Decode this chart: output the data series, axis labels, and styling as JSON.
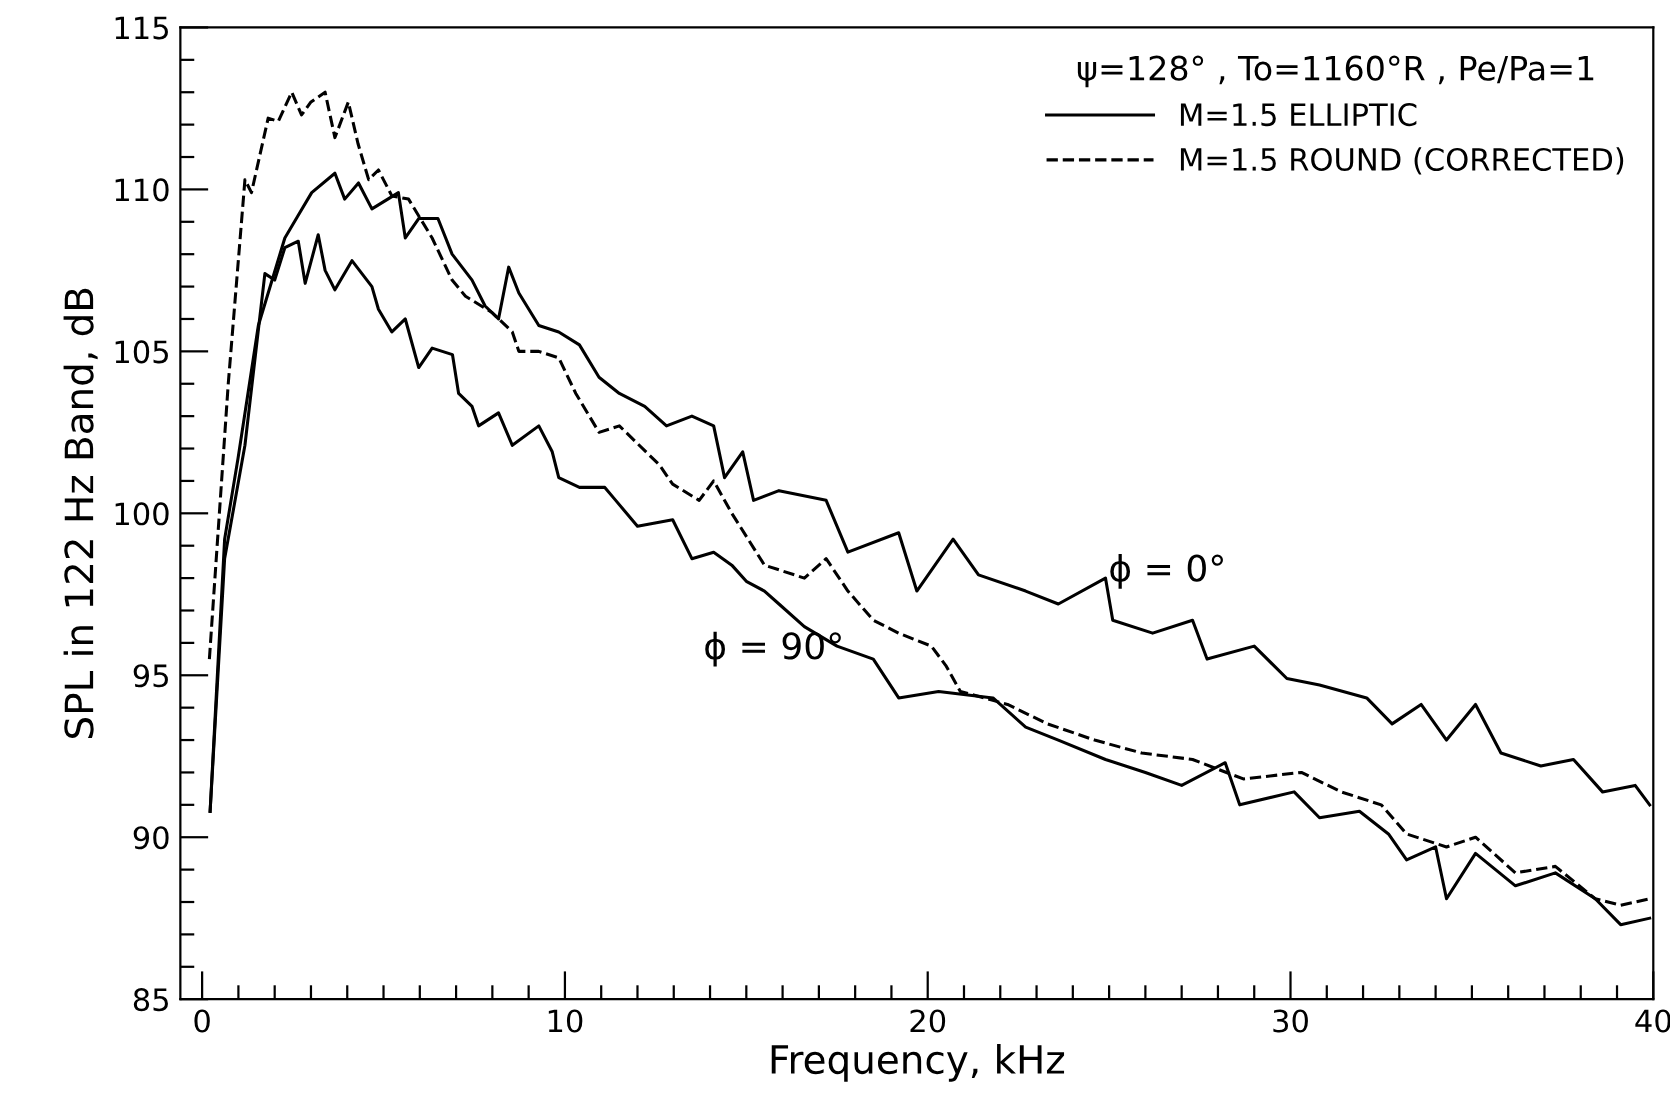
{
  "chart_data": {
    "type": "line",
    "xlabel": "Frequency, kHz",
    "ylabel": "SPL in 122 Hz Band, dB",
    "legend_title": "ψ=128° , To=1160°R , Pe/Pa=1",
    "legend": "top right",
    "grid": false,
    "marker": "none",
    "xlim": [
      -0.6,
      40
    ],
    "ylim": [
      85,
      115
    ],
    "xticks": [
      0,
      {
        "value": 1,
        "label": null
      },
      {
        "value": 2,
        "label": null
      },
      {
        "value": 3,
        "label": null
      },
      {
        "value": 4,
        "label": null
      },
      {
        "value": 5,
        "label": null
      },
      {
        "value": 6,
        "label": null
      },
      {
        "value": 7,
        "label": null
      },
      {
        "value": 8,
        "label": null
      },
      {
        "value": 9,
        "label": null
      },
      10,
      {
        "value": 11,
        "label": null
      },
      {
        "value": 12,
        "label": null
      },
      {
        "value": 13,
        "label": null
      },
      {
        "value": 14,
        "label": null
      },
      {
        "value": 15,
        "label": null
      },
      {
        "value": 16,
        "label": null
      },
      {
        "value": 17,
        "label": null
      },
      {
        "value": 18,
        "label": null
      },
      {
        "value": 19,
        "label": null
      },
      20,
      {
        "value": 21,
        "label": null
      },
      {
        "value": 22,
        "label": null
      },
      {
        "value": 23,
        "label": null
      },
      {
        "value": 24,
        "label": null
      },
      {
        "value": 25,
        "label": null
      },
      {
        "value": 26,
        "label": null
      },
      {
        "value": 27,
        "label": null
      },
      {
        "value": 28,
        "label": null
      },
      {
        "value": 29,
        "label": null
      },
      30,
      {
        "value": 31,
        "label": null
      },
      {
        "value": 32,
        "label": null
      },
      {
        "value": 33,
        "label": null
      },
      {
        "value": 34,
        "label": null
      },
      {
        "value": 35,
        "label": null
      },
      {
        "value": 36,
        "label": null
      },
      {
        "value": 37,
        "label": null
      },
      {
        "value": 38,
        "label": null
      },
      {
        "value": 39,
        "label": null
      },
      40
    ],
    "yticks": [
      85,
      {
        "value": 86,
        "label": null
      },
      {
        "value": 87,
        "label": null
      },
      {
        "value": 88,
        "label": null
      },
      {
        "value": 89,
        "label": null
      },
      90,
      {
        "value": 91,
        "label": null
      },
      {
        "value": 92,
        "label": null
      },
      {
        "value": 93,
        "label": null
      },
      {
        "value": 94,
        "label": null
      },
      95,
      {
        "value": 96,
        "label": null
      },
      {
        "value": 97,
        "label": null
      },
      {
        "value": 98,
        "label": null
      },
      {
        "value": 99,
        "label": null
      },
      100,
      {
        "value": 101,
        "label": null
      },
      {
        "value": 102,
        "label": null
      },
      {
        "value": 103,
        "label": null
      },
      {
        "value": 104,
        "label": null
      },
      105,
      {
        "value": 106,
        "label": null
      },
      {
        "value": 107,
        "label": null
      },
      {
        "value": 108,
        "label": null
      },
      {
        "value": 109,
        "label": null
      },
      110,
      {
        "value": 111,
        "label": null
      },
      {
        "value": 112,
        "label": null
      },
      {
        "value": 113,
        "label": null
      },
      {
        "value": 114,
        "label": null
      },
      115
    ],
    "annotations": [
      "ϕ = 0°",
      "ϕ = 90°"
    ],
    "series": [
      {
        "name": "M=1.5 ELLIPTIC",
        "color": "#000000",
        "line_style": "solid",
        "x": [
          0.22,
          0.62,
          0.99,
          1.55,
          2.28,
          2.65,
          3.02,
          3.66,
          3.93,
          4.31,
          4.68,
          5.41,
          5.6,
          5.97,
          6.5,
          6.89,
          7.44,
          7.8,
          8.17,
          8.45,
          8.73,
          9.28,
          9.83,
          10.4,
          10.94,
          11.5,
          12.2,
          12.8,
          13.5,
          14.1,
          14.4,
          14.9,
          15.2,
          15.9,
          17.2,
          17.8,
          19.2,
          19.7,
          20.7,
          21.4,
          22.7,
          23.6,
          24.9,
          25.1,
          26.2,
          27.3,
          27.7,
          29.0,
          29.9,
          30.8,
          32.1,
          32.8,
          33.6,
          34.3,
          35.1,
          35.8,
          36.9,
          37.8,
          38.6,
          39.5,
          39.9
        ],
        "values": [
          90.8,
          99.2,
          101.7,
          105.8,
          108.5,
          109.2,
          109.9,
          110.5,
          109.7,
          110.2,
          109.4,
          109.9,
          108.5,
          109.1,
          109.1,
          108.0,
          107.2,
          106.4,
          106.0,
          107.6,
          106.8,
          105.8,
          105.6,
          105.2,
          104.2,
          103.7,
          103.3,
          102.7,
          103.0,
          102.7,
          101.1,
          101.9,
          100.4,
          100.7,
          100.4,
          98.8,
          99.4,
          97.6,
          99.2,
          98.1,
          97.6,
          97.2,
          98.0,
          96.7,
          96.3,
          96.7,
          95.5,
          95.9,
          94.9,
          94.7,
          94.3,
          93.5,
          94.1,
          93.0,
          94.1,
          92.6,
          92.2,
          92.4,
          91.4,
          91.6,
          91.0
        ]
      },
      {
        "color": "#000000",
        "line_style": "solid",
        "x": [
          0.22,
          0.62,
          1.18,
          1.73,
          2.0,
          2.28,
          2.65,
          2.84,
          3.2,
          3.39,
          3.66,
          4.13,
          4.68,
          4.86,
          5.23,
          5.6,
          5.97,
          6.34,
          6.9,
          7.07,
          7.44,
          7.62,
          8.17,
          8.55,
          9.28,
          9.65,
          9.83,
          10.4,
          11.1,
          11.4,
          12.0,
          12.97,
          13.5,
          14.1,
          14.6,
          15.0,
          15.5,
          15.9,
          16.6,
          17.5,
          18.5,
          19.2,
          20.3,
          21.8,
          22.7,
          23.6,
          24.9,
          26.0,
          27.0,
          28.2,
          28.6,
          30.1,
          30.8,
          31.9,
          32.7,
          33.2,
          34.0,
          34.3,
          35.1,
          36.2,
          37.3,
          38.4,
          39.1,
          39.9
        ],
        "values": [
          90.8,
          98.6,
          102.1,
          107.4,
          107.2,
          108.2,
          108.4,
          107.1,
          108.6,
          107.5,
          106.9,
          107.8,
          107.0,
          106.3,
          105.6,
          106.0,
          104.5,
          105.1,
          104.9,
          103.7,
          103.3,
          102.7,
          103.1,
          102.1,
          102.7,
          101.9,
          101.1,
          100.8,
          100.8,
          100.4,
          99.6,
          99.8,
          98.6,
          98.8,
          98.4,
          97.9,
          97.6,
          97.2,
          96.5,
          95.9,
          95.5,
          94.3,
          94.5,
          94.3,
          93.4,
          93.0,
          92.4,
          92.0,
          91.6,
          92.3,
          91.0,
          91.4,
          90.6,
          90.8,
          90.1,
          89.3,
          89.7,
          88.1,
          89.5,
          88.5,
          88.9,
          88.1,
          87.3,
          87.5
        ]
      },
      {
        "name": "M=1.5 ROUND (CORRECTED)",
        "color": "#000000",
        "line_style": "dashed",
        "x": [
          0.2,
          0.72,
          1.18,
          1.36,
          1.82,
          2.1,
          2.47,
          2.74,
          3.0,
          3.39,
          3.66,
          4.03,
          4.3,
          4.59,
          4.86,
          5.23,
          5.69,
          6.34,
          6.89,
          7.26,
          7.99,
          8.55,
          8.73,
          9.28,
          9.83,
          10.3,
          10.94,
          11.5,
          12.6,
          12.97,
          13.7,
          14.1,
          14.6,
          15.5,
          16.6,
          17.2,
          17.8,
          18.5,
          19.2,
          20.1,
          20.5,
          20.9,
          22.2,
          23.3,
          24.6,
          25.9,
          27.3,
          28.7,
          30.3,
          31.4,
          32.5,
          33.2,
          34.3,
          35.1,
          36.2,
          37.3,
          38.4,
          39.1,
          39.9
        ],
        "values": [
          95.5,
          104.0,
          110.3,
          109.9,
          112.2,
          112.1,
          113.0,
          112.3,
          112.7,
          113.0,
          111.6,
          112.7,
          111.4,
          110.3,
          110.6,
          109.8,
          109.7,
          108.5,
          107.2,
          106.7,
          106.2,
          105.6,
          105.0,
          105.0,
          104.8,
          103.7,
          102.5,
          102.7,
          101.5,
          100.9,
          100.4,
          101.0,
          100.0,
          98.4,
          98.0,
          98.6,
          97.6,
          96.7,
          96.3,
          95.9,
          95.3,
          94.5,
          94.1,
          93.5,
          93.0,
          92.6,
          92.4,
          91.8,
          92.0,
          91.4,
          91.0,
          90.1,
          89.7,
          90.0,
          88.9,
          89.1,
          88.1,
          87.9,
          88.1
        ]
      }
    ]
  }
}
